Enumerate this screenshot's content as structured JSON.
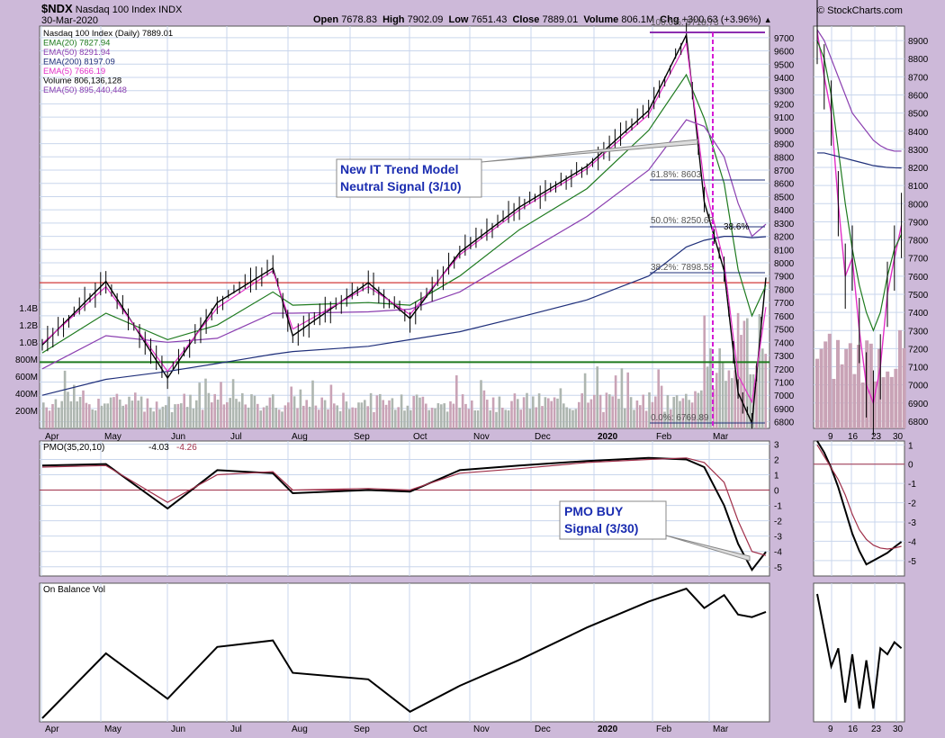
{
  "header": {
    "symbol": "$NDX",
    "name": "Nasdaq 100 Index",
    "exchange": "INDX",
    "date": "30-Mar-2020",
    "open_label": "Open",
    "open": "7678.83",
    "high_label": "High",
    "high": "7902.09",
    "low_label": "Low",
    "low": "7651.43",
    "close_label": "Close",
    "close": "7889.01",
    "volume_label": "Volume",
    "volume": "806.1M",
    "chg_label": "Chg",
    "chg": "+300.63 (+3.96%)",
    "watermark": "© StockCharts.com"
  },
  "legend": [
    {
      "text": "Nasdaq 100 Index (Daily) 7889.01",
      "color": "#000000"
    },
    {
      "text": "EMA(20) 7827.94",
      "color": "#1e7a1e"
    },
    {
      "text": "EMA(50) 8291.94",
      "color": "#8b3fb0"
    },
    {
      "text": "EMA(200) 8197.09",
      "color": "#1f2f7a"
    },
    {
      "text": "EMA(5) 7666.19",
      "color": "#e22fc7"
    },
    {
      "text": "Volume 806,136,128",
      "color": "#000000"
    },
    {
      "text": "EMA(50) 895,440,448",
      "color": "#8b3fb0"
    }
  ],
  "fib_labels": [
    "100.0%: 9718.73",
    "61.8%: 8603",
    "50.0%: 8250.63",
    "38.2%: 7898.58",
    "0.0%: 6769.89",
    "38.6%"
  ],
  "annotations": {
    "trend": [
      "New IT Trend Model",
      "Neutral Signal (3/10)"
    ],
    "pmo": [
      "PMO BUY",
      "Signal (3/30)"
    ]
  },
  "pmo_legend": {
    "text": "PMO(35,20,10)",
    "v1": "-4.03",
    "v2": "-4.26"
  },
  "obv_legend": "On Balance Vol",
  "colors": {
    "ema20": "#1e7a1e",
    "ema50": "#8b3fb0",
    "ema200": "#1f2f7a",
    "ema5": "#e22fc7",
    "volume": "#c9a3b6",
    "panel_bg": "#ffffff",
    "grid": "#c9d6ec"
  },
  "chart_data": [
    {
      "type": "line",
      "title": "Nasdaq 100 Index (Daily)",
      "x_ticks": [
        "Apr",
        "May",
        "Jun",
        "Jul",
        "Aug",
        "Sep",
        "Oct",
        "Nov",
        "Dec",
        "2020",
        "Feb",
        "Mar"
      ],
      "y_ticks": [
        "9700",
        "9600",
        "9500",
        "9400",
        "9300",
        "9200",
        "9100",
        "9000",
        "8900",
        "8800",
        "8700",
        "8600",
        "8500",
        "8400",
        "8300",
        "8200",
        "8100",
        "8000",
        "7900",
        "7800",
        "7700",
        "7600",
        "7500",
        "7400",
        "7300",
        "7200",
        "7100",
        "7000",
        "6900",
        "6800"
      ],
      "ylim": [
        6750,
        9760
      ],
      "vol_ticks": [
        "1.4B",
        "1.2B",
        "1.0B",
        "800M",
        "600M",
        "400M",
        "200M"
      ],
      "horizontal_lines": [
        {
          "value": 7850,
          "color": "#d23a3a"
        },
        {
          "value": 7250,
          "color": "#1e7a1e"
        }
      ],
      "series": [
        {
          "name": "Nasdaq 100 Index (Daily)",
          "x": [
            "2019-04-01",
            "2019-05-03",
            "2019-06-03",
            "2019-06-28",
            "2019-07-26",
            "2019-08-05",
            "2019-09-12",
            "2019-10-03",
            "2019-10-28",
            "2019-11-27",
            "2019-12-31",
            "2020-01-31",
            "2020-02-19",
            "2020-02-28",
            "2020-03-09",
            "2020-03-16",
            "2020-03-23",
            "2020-03-30"
          ],
          "values": [
            7380,
            7860,
            7130,
            7700,
            7960,
            7450,
            7850,
            7580,
            8080,
            8420,
            8730,
            9150,
            9720,
            8460,
            7940,
            7020,
            6790,
            7889
          ]
        },
        {
          "name": "EMA(20)",
          "values": [
            7320,
            7620,
            7420,
            7530,
            7780,
            7680,
            7700,
            7680,
            7900,
            8250,
            8560,
            9000,
            9420,
            9090,
            8600,
            7950,
            7600,
            7828
          ]
        },
        {
          "name": "EMA(50)",
          "values": [
            7200,
            7450,
            7400,
            7430,
            7620,
            7620,
            7630,
            7650,
            7780,
            8050,
            8350,
            8700,
            9080,
            9030,
            8800,
            8450,
            8200,
            8292
          ]
        },
        {
          "name": "EMA(200)",
          "values": [
            7000,
            7120,
            7180,
            7240,
            7310,
            7330,
            7370,
            7420,
            7480,
            7590,
            7720,
            7900,
            8120,
            8170,
            8200,
            8200,
            8190,
            8197
          ]
        },
        {
          "name": "EMA(5)",
          "values": [
            7390,
            7820,
            7180,
            7660,
            7940,
            7500,
            7820,
            7610,
            8060,
            8400,
            8710,
            9120,
            9660,
            8600,
            8000,
            7150,
            6950,
            7666
          ]
        }
      ]
    },
    {
      "type": "line",
      "title": "PMO(35,20,10)",
      "y_ticks": [
        "3",
        "2",
        "1",
        "0",
        "-1",
        "-2",
        "-3",
        "-4",
        "-5"
      ],
      "ylim": [
        -5.6,
        3.2
      ],
      "series": [
        {
          "name": "PMO",
          "values": [
            1.6,
            1.7,
            -1.2,
            1.3,
            1.1,
            -0.2,
            0.0,
            -0.1,
            1.3,
            1.6,
            1.9,
            2.1,
            2.0,
            1.5,
            -1.0,
            -3.5,
            -5.2,
            -4.03
          ]
        },
        {
          "name": "signal",
          "values": [
            1.5,
            1.6,
            -0.8,
            1.0,
            1.2,
            0.0,
            0.1,
            0.0,
            1.1,
            1.4,
            1.8,
            2.0,
            2.1,
            1.8,
            0.5,
            -2.0,
            -4.0,
            -4.26
          ]
        }
      ]
    },
    {
      "type": "line",
      "title": "On Balance Vol",
      "series": [
        {
          "name": "On Balance Vol",
          "values": [
            0.0,
            0.5,
            0.15,
            0.55,
            0.6,
            0.35,
            0.3,
            0.05,
            0.25,
            0.45,
            0.7,
            0.9,
            1.0,
            0.85,
            0.95,
            0.8,
            0.78,
            0.82
          ]
        }
      ]
    }
  ],
  "inset": {
    "x_ticks": [
      "9",
      "16",
      "23",
      "30"
    ],
    "price_ticks": [
      "8900",
      "8800",
      "8700",
      "8600",
      "8500",
      "8400",
      "8300",
      "8200",
      "8100",
      "8000",
      "7900",
      "7800",
      "7700",
      "7600",
      "7500",
      "7400",
      "7300",
      "7200",
      "7100",
      "7000",
      "6900",
      "6800"
    ],
    "pmo_ticks": [
      "1",
      "0",
      "-1",
      "-2",
      "-3",
      "-4",
      "-5"
    ]
  }
}
